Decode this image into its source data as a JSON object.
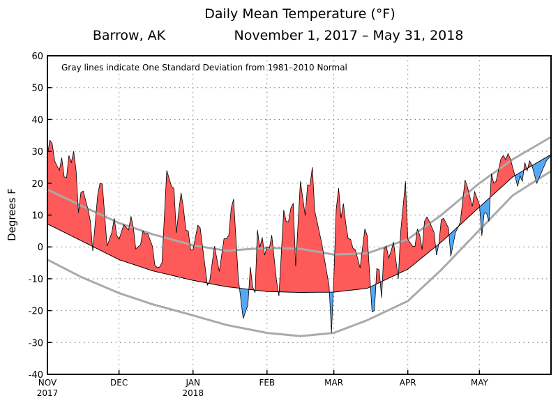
{
  "chart_data": {
    "type": "area",
    "title": "Daily Mean Temperature (°F)",
    "subtitle_location": "Barrow, AK",
    "subtitle_period": "November 1, 2017 – May 31, 2018",
    "annotation": "Gray lines indicate One Standard Deviation from 1981–2010 Normal",
    "ylabel": "Degrees F",
    "ylim": [
      -40,
      60
    ],
    "yticks": [
      -40,
      -30,
      -20,
      -10,
      0,
      10,
      20,
      30,
      40,
      50,
      60
    ],
    "xlim": [
      "2017-11-01",
      "2018-05-31"
    ],
    "xticks": [
      {
        "date": "2017-11-01",
        "label": "NOV",
        "year": "2017"
      },
      {
        "date": "2017-12-01",
        "label": "DEC",
        "year": ""
      },
      {
        "date": "2018-01-01",
        "label": "JAN",
        "year": "2018"
      },
      {
        "date": "2018-02-01",
        "label": "FEB",
        "year": ""
      },
      {
        "date": "2018-03-01",
        "label": "MAR",
        "year": ""
      },
      {
        "date": "2018-04-01",
        "label": "APR",
        "year": ""
      },
      {
        "date": "2018-05-01",
        "label": "MAY",
        "year": ""
      }
    ],
    "grid": true,
    "colors": {
      "above_normal": "#ff5a5a",
      "below_normal": "#55a8f5",
      "std_dev": "#aaaaaa",
      "line": "#000000"
    },
    "observed": [
      [
        "2017-11-01",
        28.7
      ],
      [
        "2017-11-02",
        33.5
      ],
      [
        "2017-11-03",
        32.5
      ],
      [
        "2017-11-04",
        27
      ],
      [
        "2017-11-06",
        24
      ],
      [
        "2017-11-07",
        28
      ],
      [
        "2017-11-08",
        22
      ],
      [
        "2017-11-09",
        21.7
      ],
      [
        "2017-11-10",
        28.7
      ],
      [
        "2017-11-11",
        26.5
      ],
      [
        "2017-11-12",
        30
      ],
      [
        "2017-11-13",
        24
      ],
      [
        "2017-11-14",
        10.7
      ],
      [
        "2017-11-15",
        17
      ],
      [
        "2017-11-16",
        17.5
      ],
      [
        "2017-11-18",
        11.8
      ],
      [
        "2017-11-19",
        8
      ],
      [
        "2017-11-20",
        -1.3
      ],
      [
        "2017-11-22",
        16
      ],
      [
        "2017-11-23",
        20
      ],
      [
        "2017-11-24",
        19.7
      ],
      [
        "2017-11-26",
        0.2
      ],
      [
        "2017-11-28",
        4.6
      ],
      [
        "2017-11-29",
        9
      ],
      [
        "2017-11-30",
        3.7
      ],
      [
        "2017-12-01",
        2.4
      ],
      [
        "2017-12-03",
        7
      ],
      [
        "2017-12-04",
        6.1
      ],
      [
        "2017-12-05",
        5.3
      ],
      [
        "2017-12-06",
        9.6
      ],
      [
        "2017-12-07",
        6
      ],
      [
        "2017-12-08",
        -0.6
      ],
      [
        "2017-12-10",
        0.7
      ],
      [
        "2017-12-11",
        5
      ],
      [
        "2017-12-12",
        4
      ],
      [
        "2017-12-13",
        4.2
      ],
      [
        "2017-12-15",
        0.2
      ],
      [
        "2017-12-16",
        -5.7
      ],
      [
        "2017-12-17",
        -6.5
      ],
      [
        "2017-12-18",
        -6.3
      ],
      [
        "2017-12-19",
        -5
      ],
      [
        "2017-12-21",
        24
      ],
      [
        "2017-12-23",
        19
      ],
      [
        "2017-12-24",
        18.4
      ],
      [
        "2017-12-25",
        4.4
      ],
      [
        "2017-12-26",
        11
      ],
      [
        "2017-12-27",
        17
      ],
      [
        "2017-12-28",
        12.2
      ],
      [
        "2017-12-29",
        5.3
      ],
      [
        "2017-12-30",
        5
      ],
      [
        "2017-12-31",
        -0.9
      ],
      [
        "2018-01-01",
        -0.9
      ],
      [
        "2018-01-03",
        6.8
      ],
      [
        "2018-01-04",
        6
      ],
      [
        "2018-01-07",
        -12
      ],
      [
        "2018-01-08",
        -10.7
      ],
      [
        "2018-01-10",
        0.2
      ],
      [
        "2018-01-12",
        -7.7
      ],
      [
        "2018-01-14",
        2.6
      ],
      [
        "2018-01-15",
        2.6
      ],
      [
        "2018-01-16",
        3.7
      ],
      [
        "2018-01-17",
        12.2
      ],
      [
        "2018-01-18",
        15
      ],
      [
        "2018-01-20",
        -10
      ],
      [
        "2018-01-22",
        -22.5
      ],
      [
        "2018-01-24",
        -18.2
      ],
      [
        "2018-01-25",
        -6.3
      ],
      [
        "2018-01-26",
        -12.7
      ],
      [
        "2018-01-27",
        -14.4
      ],
      [
        "2018-01-28",
        5.3
      ],
      [
        "2018-01-29",
        -0.2
      ],
      [
        "2018-01-30",
        3
      ],
      [
        "2018-01-31",
        -2.6
      ],
      [
        "2018-02-01",
        0
      ],
      [
        "2018-02-02",
        -0.4
      ],
      [
        "2018-02-03",
        3.7
      ],
      [
        "2018-02-05",
        -10.7
      ],
      [
        "2018-02-06",
        -15.5
      ],
      [
        "2018-02-08",
        11.6
      ],
      [
        "2018-02-09",
        8
      ],
      [
        "2018-02-10",
        7.9
      ],
      [
        "2018-02-11",
        12.2
      ],
      [
        "2018-02-12",
        13.6
      ],
      [
        "2018-02-13",
        -6.1
      ],
      [
        "2018-02-15",
        20.6
      ],
      [
        "2018-02-17",
        9.8
      ],
      [
        "2018-02-18",
        19.5
      ],
      [
        "2018-02-19",
        19.3
      ],
      [
        "2018-02-20",
        25
      ],
      [
        "2018-02-21",
        11.4
      ],
      [
        "2018-02-24",
        0.9
      ],
      [
        "2018-02-27",
        -12.3
      ],
      [
        "2018-02-28",
        -27
      ],
      [
        "2018-03-01",
        -10
      ],
      [
        "2018-03-02",
        11.8
      ],
      [
        "2018-03-03",
        18.4
      ],
      [
        "2018-03-04",
        9
      ],
      [
        "2018-03-05",
        13.6
      ],
      [
        "2018-03-06",
        7.4
      ],
      [
        "2018-03-07",
        2.6
      ],
      [
        "2018-03-08",
        2.4
      ],
      [
        "2018-03-09",
        -0.4
      ],
      [
        "2018-03-10",
        -0.9
      ],
      [
        "2018-03-12",
        -6.6
      ],
      [
        "2018-03-14",
        5.7
      ],
      [
        "2018-03-15",
        3.5
      ],
      [
        "2018-03-17",
        -20.4
      ],
      [
        "2018-03-18",
        -20
      ],
      [
        "2018-03-19",
        -6.8
      ],
      [
        "2018-03-20",
        -7.2
      ],
      [
        "2018-03-21",
        -16
      ],
      [
        "2018-03-22",
        -0.6
      ],
      [
        "2018-03-23",
        0.2
      ],
      [
        "2018-03-24",
        -3.5
      ],
      [
        "2018-03-25",
        -1.3
      ],
      [
        "2018-03-26",
        1.5
      ],
      [
        "2018-03-28",
        -10
      ],
      [
        "2018-03-29",
        4.6
      ],
      [
        "2018-03-31",
        20.6
      ],
      [
        "2018-04-01",
        2.4
      ],
      [
        "2018-04-03",
        0.2
      ],
      [
        "2018-04-04",
        0.2
      ],
      [
        "2018-04-05",
        5.7
      ],
      [
        "2018-04-06",
        3.7
      ],
      [
        "2018-04-07",
        -0.9
      ],
      [
        "2018-04-08",
        8
      ],
      [
        "2018-04-09",
        9.4
      ],
      [
        "2018-04-10",
        8
      ],
      [
        "2018-04-12",
        4.6
      ],
      [
        "2018-04-13",
        -2.6
      ],
      [
        "2018-04-14",
        0.9
      ],
      [
        "2018-04-15",
        8.5
      ],
      [
        "2018-04-16",
        9
      ],
      [
        "2018-04-18",
        6
      ],
      [
        "2018-04-19",
        -3
      ],
      [
        "2018-04-21",
        4.6
      ],
      [
        "2018-04-22",
        6
      ],
      [
        "2018-04-23",
        7.9
      ],
      [
        "2018-04-25",
        21
      ],
      [
        "2018-04-26",
        18.8
      ],
      [
        "2018-04-28",
        12.7
      ],
      [
        "2018-04-29",
        17.3
      ],
      [
        "2018-05-01",
        13.3
      ],
      [
        "2018-05-02",
        3.5
      ],
      [
        "2018-05-03",
        10.7
      ],
      [
        "2018-05-04",
        10.5
      ],
      [
        "2018-05-05",
        8
      ],
      [
        "2018-05-06",
        23
      ],
      [
        "2018-05-07",
        20
      ],
      [
        "2018-05-08",
        20.6
      ],
      [
        "2018-05-10",
        27.6
      ],
      [
        "2018-05-11",
        28.7
      ],
      [
        "2018-05-12",
        27.4
      ],
      [
        "2018-05-13",
        29.3
      ],
      [
        "2018-05-14",
        27.6
      ],
      [
        "2018-05-16",
        22
      ],
      [
        "2018-05-17",
        19
      ],
      [
        "2018-05-18",
        22.3
      ],
      [
        "2018-05-19",
        20.6
      ],
      [
        "2018-05-20",
        26.5
      ],
      [
        "2018-05-21",
        23.9
      ],
      [
        "2018-05-22",
        27
      ],
      [
        "2018-05-23",
        25.6
      ],
      [
        "2018-05-25",
        20
      ],
      [
        "2018-05-26",
        21.7
      ],
      [
        "2018-05-27",
        23.4
      ],
      [
        "2018-05-29",
        27
      ],
      [
        "2018-05-31",
        28.7
      ]
    ],
    "normal": [
      [
        "2017-11-01",
        7.2
      ],
      [
        "2017-11-15",
        2
      ],
      [
        "2017-12-01",
        -4
      ],
      [
        "2017-12-15",
        -7.5
      ],
      [
        "2018-01-01",
        -10.5
      ],
      [
        "2018-01-15",
        -12.5
      ],
      [
        "2018-02-01",
        -14
      ],
      [
        "2018-02-15",
        -14.3
      ],
      [
        "2018-03-01",
        -14.2
      ],
      [
        "2018-03-15",
        -13
      ],
      [
        "2018-04-01",
        -7
      ],
      [
        "2018-04-15",
        1.5
      ],
      [
        "2018-05-01",
        12.5
      ],
      [
        "2018-05-15",
        22
      ],
      [
        "2018-05-31",
        29
      ]
    ],
    "std_upper": [
      [
        "2017-11-01",
        18
      ],
      [
        "2017-11-15",
        13
      ],
      [
        "2017-12-01",
        7.5
      ],
      [
        "2017-12-15",
        4
      ],
      [
        "2018-01-01",
        0.5
      ],
      [
        "2018-01-15",
        -1.2
      ],
      [
        "2018-02-01",
        -0.3
      ],
      [
        "2018-02-15",
        -0.6
      ],
      [
        "2018-03-01",
        -2.4
      ],
      [
        "2018-03-15",
        -2
      ],
      [
        "2018-04-01",
        2.4
      ],
      [
        "2018-04-15",
        10
      ],
      [
        "2018-05-01",
        20
      ],
      [
        "2018-05-15",
        27.5
      ],
      [
        "2018-05-31",
        34.5
      ]
    ],
    "std_lower": [
      [
        "2017-11-01",
        -4
      ],
      [
        "2017-11-15",
        -9.4
      ],
      [
        "2017-12-01",
        -14.5
      ],
      [
        "2017-12-15",
        -18
      ],
      [
        "2018-01-01",
        -21.5
      ],
      [
        "2018-01-15",
        -24.5
      ],
      [
        "2018-02-01",
        -27
      ],
      [
        "2018-02-15",
        -28
      ],
      [
        "2018-03-01",
        -27
      ],
      [
        "2018-03-15",
        -23
      ],
      [
        "2018-04-01",
        -17
      ],
      [
        "2018-04-15",
        -7.2
      ],
      [
        "2018-05-01",
        5.3
      ],
      [
        "2018-05-15",
        16.2
      ],
      [
        "2018-05-31",
        23.8
      ]
    ]
  }
}
